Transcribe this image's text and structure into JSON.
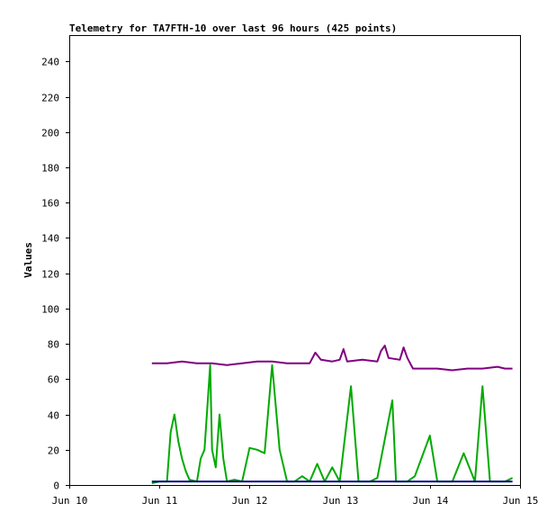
{
  "chart_data": {
    "type": "line",
    "title": "Telemetry for TA7FTH-10 over last 96 hours (425 points)",
    "ylabel": "Values",
    "xlabel": "",
    "ylim": [
      0,
      255
    ],
    "yticks": [
      0,
      20,
      40,
      60,
      80,
      100,
      120,
      140,
      160,
      180,
      200,
      220,
      240
    ],
    "xlim": [
      "2024-06-10T00:00",
      "2024-06-15T00:00"
    ],
    "xticks": [
      {
        "x": "2024-06-10T00:00",
        "label": "Jun 10"
      },
      {
        "x": "2024-06-11T00:00",
        "label": "Jun 11"
      },
      {
        "x": "2024-06-12T00:00",
        "label": "Jun 12"
      },
      {
        "x": "2024-06-13T00:00",
        "label": "Jun 13"
      },
      {
        "x": "2024-06-14T00:00",
        "label": "Jun 14"
      },
      {
        "x": "2024-06-15T00:00",
        "label": "Jun 15"
      }
    ],
    "grid": false,
    "legend": "none",
    "series": [
      {
        "color": "#800080",
        "points": [
          [
            "2024-06-10T22:00",
            69
          ],
          [
            "2024-06-11T02:00",
            69
          ],
          [
            "2024-06-11T06:00",
            70
          ],
          [
            "2024-06-11T10:00",
            69
          ],
          [
            "2024-06-11T14:00",
            69
          ],
          [
            "2024-06-11T18:00",
            68
          ],
          [
            "2024-06-11T22:00",
            69
          ],
          [
            "2024-06-12T02:00",
            70
          ],
          [
            "2024-06-12T06:00",
            70
          ],
          [
            "2024-06-12T10:00",
            69
          ],
          [
            "2024-06-12T14:00",
            69
          ],
          [
            "2024-06-12T16:00",
            69
          ],
          [
            "2024-06-12T17:30",
            75
          ],
          [
            "2024-06-12T19:00",
            71
          ],
          [
            "2024-06-12T22:00",
            70
          ],
          [
            "2024-06-13T00:00",
            71
          ],
          [
            "2024-06-13T01:00",
            77
          ],
          [
            "2024-06-13T02:00",
            70
          ],
          [
            "2024-06-13T06:00",
            71
          ],
          [
            "2024-06-13T10:00",
            70
          ],
          [
            "2024-06-13T11:00",
            76
          ],
          [
            "2024-06-13T12:00",
            79
          ],
          [
            "2024-06-13T13:00",
            72
          ],
          [
            "2024-06-13T16:00",
            71
          ],
          [
            "2024-06-13T17:00",
            78
          ],
          [
            "2024-06-13T18:00",
            72
          ],
          [
            "2024-06-13T19:30",
            66
          ],
          [
            "2024-06-13T22:00",
            66
          ],
          [
            "2024-06-14T02:00",
            66
          ],
          [
            "2024-06-14T06:00",
            65
          ],
          [
            "2024-06-14T10:00",
            66
          ],
          [
            "2024-06-14T14:00",
            66
          ],
          [
            "2024-06-14T18:00",
            67
          ],
          [
            "2024-06-14T20:00",
            66
          ],
          [
            "2024-06-14T22:00",
            66
          ]
        ]
      },
      {
        "color": "#00aa00",
        "points": [
          [
            "2024-06-10T22:00",
            1
          ],
          [
            "2024-06-11T00:00",
            2
          ],
          [
            "2024-06-11T02:00",
            2
          ],
          [
            "2024-06-11T03:00",
            30
          ],
          [
            "2024-06-11T04:00",
            40
          ],
          [
            "2024-06-11T05:00",
            25
          ],
          [
            "2024-06-11T06:00",
            15
          ],
          [
            "2024-06-11T07:00",
            8
          ],
          [
            "2024-06-11T08:00",
            3
          ],
          [
            "2024-06-11T10:00",
            2
          ],
          [
            "2024-06-11T11:00",
            15
          ],
          [
            "2024-06-11T12:00",
            20
          ],
          [
            "2024-06-11T13:30",
            68
          ],
          [
            "2024-06-11T14:00",
            20
          ],
          [
            "2024-06-11T15:00",
            10
          ],
          [
            "2024-06-11T16:00",
            40
          ],
          [
            "2024-06-11T17:00",
            15
          ],
          [
            "2024-06-11T18:00",
            2
          ],
          [
            "2024-06-11T20:00",
            3
          ],
          [
            "2024-06-11T22:00",
            2
          ],
          [
            "2024-06-12T00:00",
            21
          ],
          [
            "2024-06-12T02:00",
            20
          ],
          [
            "2024-06-12T04:00",
            18
          ],
          [
            "2024-06-12T06:00",
            68
          ],
          [
            "2024-06-12T08:00",
            20
          ],
          [
            "2024-06-12T10:00",
            2
          ],
          [
            "2024-06-12T12:00",
            2
          ],
          [
            "2024-06-12T14:00",
            5
          ],
          [
            "2024-06-12T16:00",
            2
          ],
          [
            "2024-06-12T18:00",
            12
          ],
          [
            "2024-06-12T20:00",
            2
          ],
          [
            "2024-06-12T22:00",
            10
          ],
          [
            "2024-06-13T00:00",
            2
          ],
          [
            "2024-06-13T03:00",
            56
          ],
          [
            "2024-06-13T05:00",
            2
          ],
          [
            "2024-06-13T08:00",
            2
          ],
          [
            "2024-06-13T10:00",
            4
          ],
          [
            "2024-06-13T14:00",
            48
          ],
          [
            "2024-06-13T15:00",
            2
          ],
          [
            "2024-06-13T18:00",
            2
          ],
          [
            "2024-06-13T20:00",
            5
          ],
          [
            "2024-06-14T00:00",
            28
          ],
          [
            "2024-06-14T02:00",
            2
          ],
          [
            "2024-06-14T06:00",
            2
          ],
          [
            "2024-06-14T09:00",
            18
          ],
          [
            "2024-06-14T12:00",
            2
          ],
          [
            "2024-06-14T14:00",
            56
          ],
          [
            "2024-06-14T16:00",
            2
          ],
          [
            "2024-06-14T18:00",
            2
          ],
          [
            "2024-06-14T20:00",
            2
          ],
          [
            "2024-06-14T22:00",
            4
          ]
        ]
      },
      {
        "color": "#000080",
        "points": [
          [
            "2024-06-10T22:00",
            2
          ],
          [
            "2024-06-14T22:00",
            2
          ]
        ]
      }
    ]
  }
}
